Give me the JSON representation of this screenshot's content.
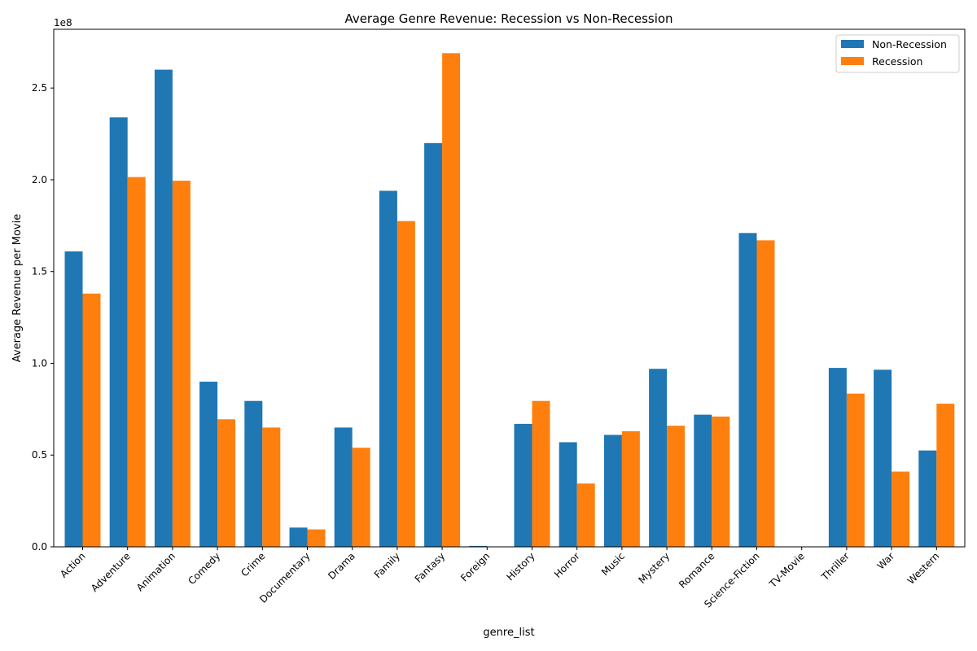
{
  "chart_data": {
    "type": "bar",
    "title": "Average Genre Revenue: Recession vs Non-Recession",
    "xlabel": "genre_list",
    "ylabel": "Average Revenue per Movie",
    "y_scale_note": "1e8",
    "ylim": [
      0,
      282000000
    ],
    "yticks": [
      0,
      50000000,
      100000000,
      150000000,
      200000000,
      250000000
    ],
    "ytick_labels": [
      "0.0",
      "0.5",
      "1.0",
      "1.5",
      "2.0",
      "2.5"
    ],
    "legend_position": "top-right",
    "grid": false,
    "categories": [
      "Action",
      "Adventure",
      "Animation",
      "Comedy",
      "Crime",
      "Documentary",
      "Drama",
      "Family",
      "Fantasy",
      "Foreign",
      "History",
      "Horror",
      "Music",
      "Mystery",
      "Romance",
      "Science-Fiction",
      "TV-Movie",
      "Thriller",
      "War",
      "Western"
    ],
    "series": [
      {
        "name": "Non-Recession",
        "color": "#1f77b4",
        "values": [
          161000000,
          234000000,
          260000000,
          90000000,
          79500000,
          10500000,
          65000000,
          194000000,
          220000000,
          500000,
          67000000,
          57000000,
          61000000,
          97000000,
          72000000,
          171000000,
          0,
          97500000,
          96500000,
          52500000
        ]
      },
      {
        "name": "Recession",
        "color": "#ff7f0e",
        "values": [
          138000000,
          201500000,
          199500000,
          69500000,
          65000000,
          9500000,
          54000000,
          177500000,
          269000000,
          0,
          79500000,
          34500000,
          63000000,
          66000000,
          71000000,
          167000000,
          0,
          83500000,
          41000000,
          78000000
        ]
      }
    ]
  }
}
